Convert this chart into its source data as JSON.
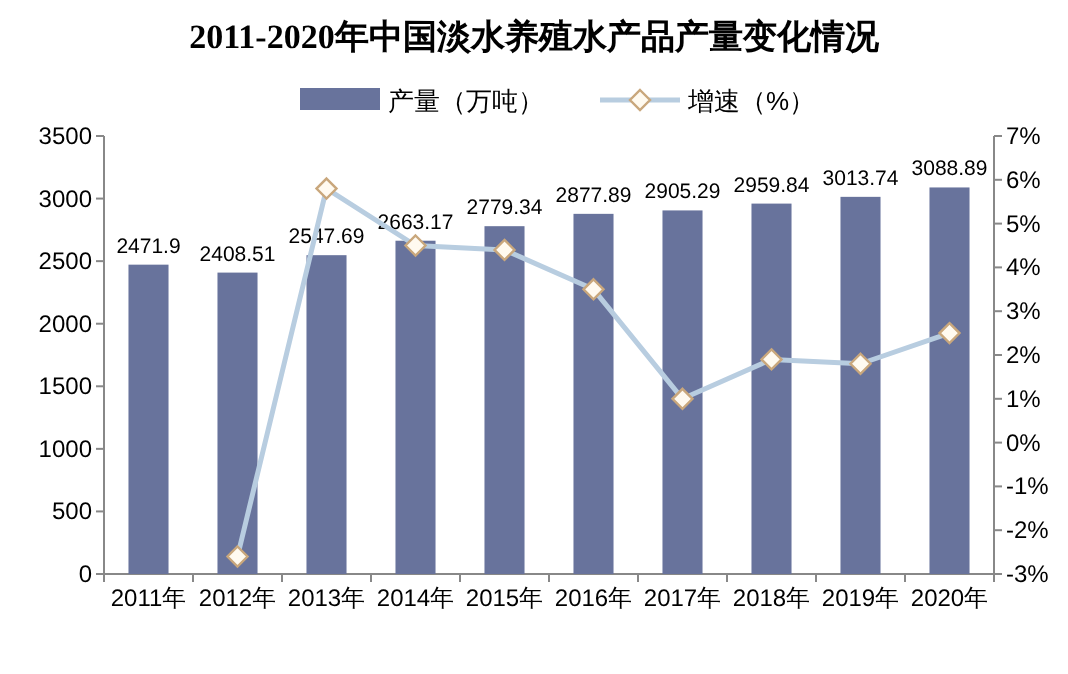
{
  "chart_data": {
    "type": "bar",
    "title": "2011-2020年中国淡水养殖水产品产量变化情况",
    "categories": [
      "2011年",
      "2012年",
      "2013年",
      "2014年",
      "2015年",
      "2016年",
      "2017年",
      "2018年",
      "2019年",
      "2020年"
    ],
    "series": [
      {
        "name": "产量（万吨）",
        "color": "#68739c",
        "values": [
          2471.9,
          2408.51,
          2547.69,
          2663.17,
          2779.34,
          2877.89,
          2905.29,
          2959.84,
          3013.74,
          3088.89
        ],
        "value_labels": [
          "2471.9",
          "2408.51",
          "2547.69",
          "2663.17",
          "2779.34",
          "2877.89",
          "2905.29",
          "2959.84",
          "3013.74",
          "3088.89"
        ]
      },
      {
        "name": "增速（%）",
        "type": "line",
        "axis": "y2",
        "color": "#b8cde0",
        "marker": "diamond",
        "values": [
          null,
          -2.6,
          5.8,
          4.5,
          4.4,
          3.5,
          1.0,
          1.9,
          1.8,
          2.5
        ]
      }
    ],
    "ylim": [
      0,
      3500
    ],
    "yticks": [
      0,
      500,
      1000,
      1500,
      2000,
      2500,
      3000,
      3500
    ],
    "y2lim": [
      -3,
      7
    ],
    "y2ticks": [
      {
        "value": -3,
        "label": "-3%"
      },
      {
        "value": -2,
        "label": "-2%"
      },
      {
        "value": -1,
        "label": "-1%"
      },
      {
        "value": 0,
        "label": "0%"
      },
      {
        "value": 1,
        "label": "1%"
      },
      {
        "value": 2,
        "label": "2%"
      },
      {
        "value": 3,
        "label": "3%"
      },
      {
        "value": 4,
        "label": "4%"
      },
      {
        "value": 5,
        "label": "5%"
      },
      {
        "value": 6,
        "label": "6%"
      },
      {
        "value": 7,
        "label": "7%"
      }
    ],
    "legend": "top",
    "grid": false
  }
}
